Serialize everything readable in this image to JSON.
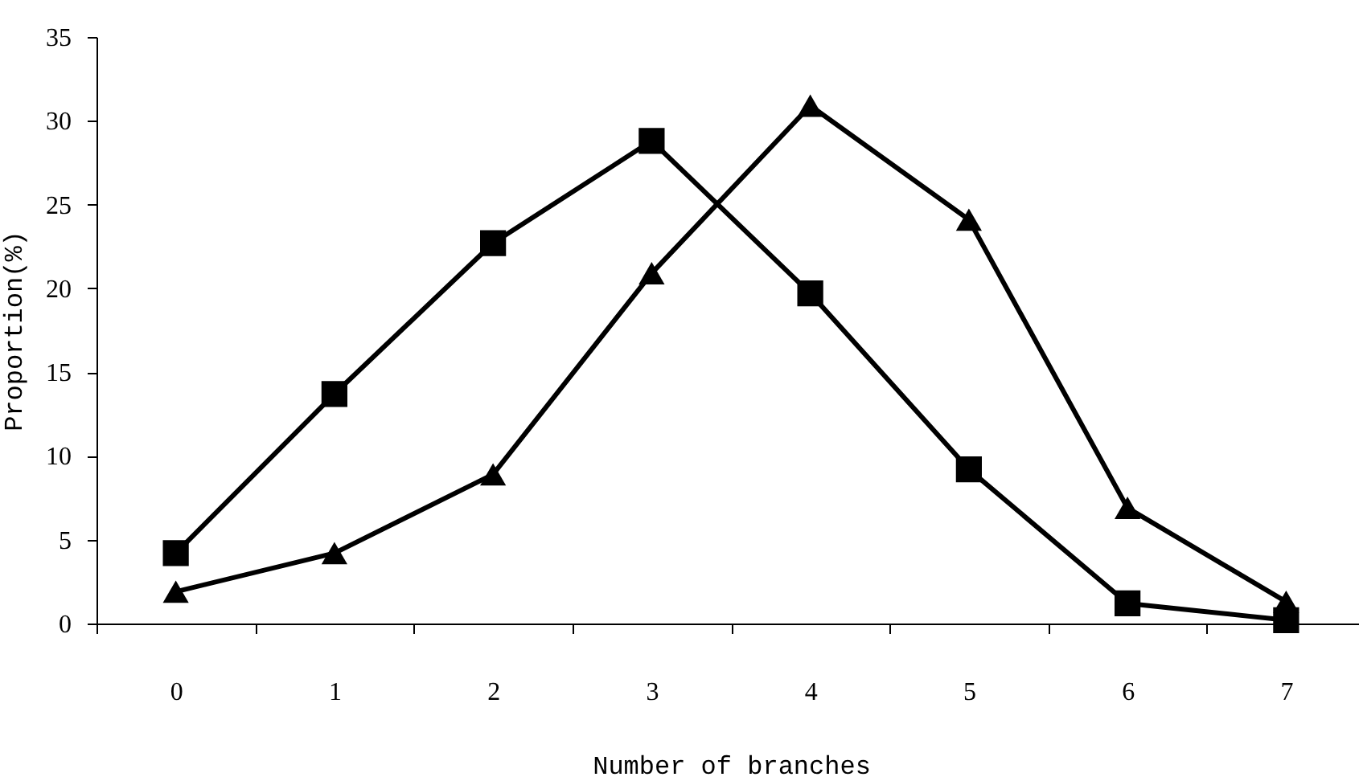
{
  "chart_data": {
    "type": "line",
    "xlabel": "Number of branches",
    "ylabel": "Proportion(%)",
    "categories": [
      "0",
      "1",
      "2",
      "3",
      "4",
      "5",
      "6",
      "7"
    ],
    "series": [
      {
        "color": "#000000",
        "marker": "square",
        "values": [
          4.2,
          13.7,
          22.7,
          28.8,
          19.7,
          9.2,
          1.2,
          0.2
        ]
      },
      {
        "color": "#000000",
        "marker": "triangle",
        "values": [
          1.9,
          4.2,
          8.9,
          20.9,
          30.9,
          24.1,
          6.9,
          1.3
        ]
      }
    ],
    "ylim": [
      0,
      35
    ],
    "yticks": [
      0,
      5,
      10,
      15,
      20,
      25,
      30,
      35
    ],
    "line_style": "solid"
  }
}
